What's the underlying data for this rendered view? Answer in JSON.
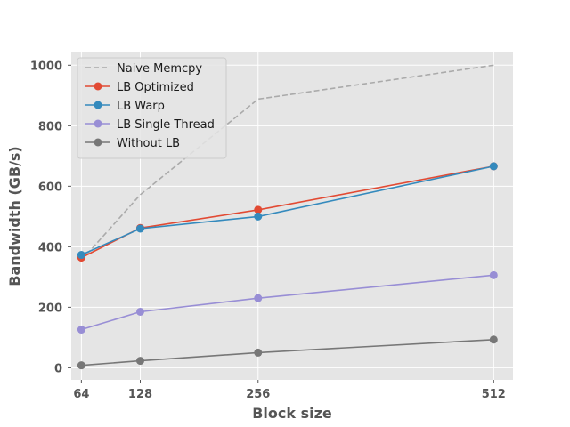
{
  "chart_data": {
    "type": "line",
    "title": "",
    "xlabel": "Block size",
    "ylabel": "Bandwidth (GB/s)",
    "x": [
      64,
      128,
      256,
      512
    ],
    "x_ticks": [
      "64",
      "128",
      "256",
      "512"
    ],
    "y_ticks": [
      "0",
      "200",
      "400",
      "600",
      "800",
      "1000"
    ],
    "xlim": [
      53,
      533
    ],
    "ylim": [
      -40,
      1045
    ],
    "grid": true,
    "legend_position": "top-left",
    "series": [
      {
        "name": "Naive Memcpy",
        "values": [
          355,
          572,
          888,
          1000
        ],
        "color": "#aaaaaa",
        "style": "dashed",
        "marker": false
      },
      {
        "name": "LB Optimized",
        "values": [
          364,
          462,
          522,
          666
        ],
        "color": "#e24a33",
        "style": "solid",
        "marker": true
      },
      {
        "name": "LB Warp",
        "values": [
          373,
          460,
          500,
          666
        ],
        "color": "#348abd",
        "style": "solid",
        "marker": true
      },
      {
        "name": "LB Single Thread",
        "values": [
          126,
          185,
          230,
          306
        ],
        "color": "#988ed5",
        "style": "solid",
        "marker": true
      },
      {
        "name": "Without LB",
        "values": [
          8,
          23,
          50,
          93
        ],
        "color": "#777777",
        "style": "solid",
        "marker": true
      }
    ]
  }
}
